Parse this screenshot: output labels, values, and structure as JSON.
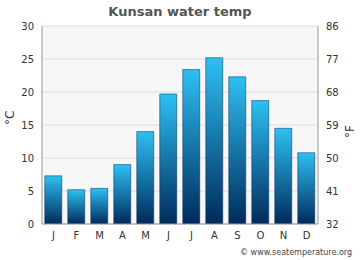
{
  "chart_data": {
    "type": "bar",
    "title": "Kunsan water temp",
    "categories": [
      "J",
      "F",
      "M",
      "A",
      "M",
      "J",
      "J",
      "A",
      "S",
      "O",
      "N",
      "D"
    ],
    "values": [
      7.3,
      5.2,
      5.4,
      9.0,
      14.0,
      19.7,
      23.4,
      25.2,
      22.3,
      18.7,
      14.5,
      10.8
    ],
    "color": "#2ec0f2",
    "ylabel": "°C",
    "y2label": "°F",
    "ylim": [
      0,
      30
    ],
    "yticks": [
      0,
      5,
      10,
      15,
      20,
      25,
      30
    ],
    "y2lim": [
      32,
      86
    ],
    "y2ticks": [
      32,
      41,
      50,
      59,
      68,
      77,
      86
    ],
    "grid": true,
    "annotation": "© www.seatemperature.org"
  }
}
